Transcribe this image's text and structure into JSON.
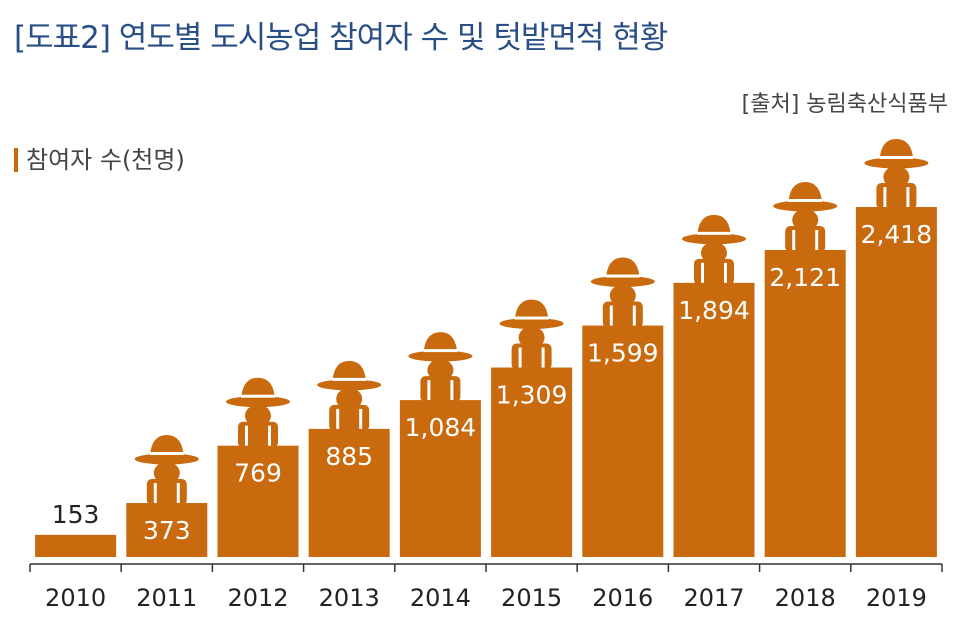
{
  "title": "[도표2] 연도별 도시농업 참여자 수 및 텃밭면적 현황",
  "source": "[출처] 농림축산식품부",
  "colors": {
    "bar": "#c96a0e",
    "title": "#2a4f86",
    "axis": "#333333",
    "label_inside": "#ffffff"
  },
  "chart_data": {
    "type": "bar",
    "title": "[도표2] 연도별 도시농업 참여자 수 및 텃밭면적 현황",
    "ylabel": "참여자 수(천명)",
    "xlabel": "",
    "categories": [
      "2010",
      "2011",
      "2012",
      "2013",
      "2014",
      "2015",
      "2016",
      "2017",
      "2018",
      "2019"
    ],
    "values": [
      153,
      373,
      769,
      885,
      1084,
      1309,
      1599,
      1894,
      2121,
      2418
    ],
    "value_labels": [
      "153",
      "373",
      "769",
      "885",
      "1,084",
      "1,309",
      "1,599",
      "1,894",
      "2,121",
      "2,418"
    ],
    "ylim": [
      0,
      2418
    ],
    "grid": false,
    "legend": "none",
    "mark_icon": "farmer-with-hat-icon"
  }
}
